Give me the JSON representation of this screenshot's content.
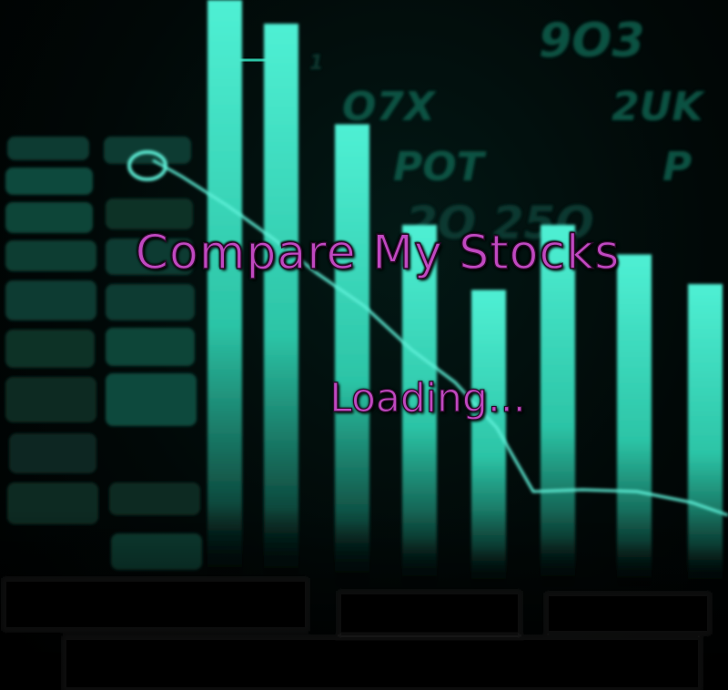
{
  "app": {
    "title": "Compare My Stocks",
    "status": "Loading..."
  },
  "background_art": {
    "kind": "stock-chart-decoration",
    "colors": {
      "bar_light": "#4ff0d4",
      "bar_dark": "#0b3a32",
      "panel": "#0e3c32",
      "line": "#5ef0d8",
      "glyph": "#0f5a48",
      "title": "#c048c0"
    },
    "bar_values": [
      1.0,
      0.96,
      0.79,
      0.62,
      0.51,
      0.62,
      0.57,
      0.52
    ]
  }
}
